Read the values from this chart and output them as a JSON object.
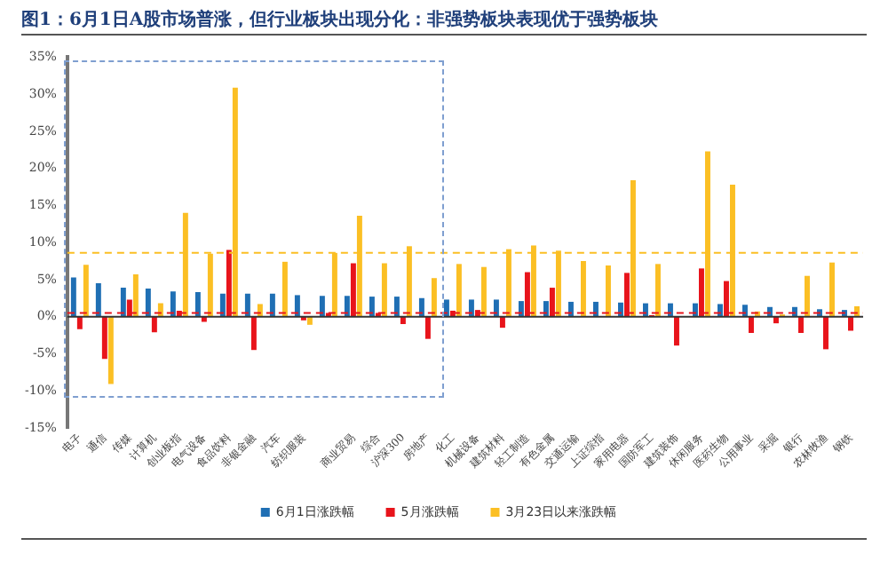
{
  "chart_data": {
    "type": "bar",
    "title": "图1：6月1日A股市场普涨，但行业板块出现分化：非强势板块表现优于强势板块",
    "categories": [
      "电子",
      "通信",
      "传媒",
      "计算机",
      "创业板指",
      "电气设备",
      "食品饮料",
      "非银金融",
      "汽车",
      "纺织服装",
      null,
      "商业贸易",
      "综合",
      "沪深300",
      "房地产",
      "化工",
      "机械设备",
      "建筑材料",
      "轻工制造",
      "有色金属",
      "交通运输",
      "上证综指",
      "家用电器",
      "国防军工",
      "建筑装饰",
      "休闲服务",
      "医药生物",
      "公用事业",
      "采掘",
      "银行",
      "农林牧渔",
      "钢铁"
    ],
    "series": [
      {
        "name": "6月1日涨跌幅",
        "color": "#1f6fb4",
        "values": [
          5.3,
          4.5,
          3.9,
          3.8,
          3.4,
          3.3,
          3.1,
          3.1,
          3.1,
          2.9,
          2.8,
          2.8,
          2.7,
          2.7,
          2.5,
          2.3,
          2.3,
          2.3,
          2.1,
          2.1,
          2.0,
          2.0,
          1.9,
          1.8,
          1.8,
          1.8,
          1.7,
          1.6,
          1.3,
          1.3,
          1.0,
          0.9
        ]
      },
      {
        "name": "5月涨跌幅",
        "color": "#e8141b",
        "values": [
          -1.7,
          -5.7,
          2.3,
          -2.1,
          0.8,
          -0.7,
          9.0,
          -4.5,
          null,
          -0.5,
          0.5,
          7.2,
          0.5,
          -1.0,
          -3.0,
          0.8,
          0.9,
          -1.5,
          6.0,
          3.9,
          0,
          null,
          5.9,
          0.2,
          -3.9,
          6.5,
          4.8,
          -2.2,
          -0.9,
          -2.2,
          -4.4,
          -1.9
        ]
      },
      {
        "name": "3月23日以来涨跌幅",
        "color": "#fbbf24",
        "values": [
          7.0,
          -9.1,
          5.7,
          1.8,
          14.0,
          8.5,
          30.9,
          1.7,
          7.4,
          -1.1,
          8.6,
          13.6,
          7.2,
          9.5,
          5.2,
          7.1,
          6.7,
          9.1,
          9.6,
          8.9,
          7.5,
          6.9,
          18.4,
          7.1,
          0,
          22.3,
          17.8,
          0.7,
          0.3,
          5.5,
          7.3,
          1.4
        ]
      }
    ],
    "ylim": [
      -15,
      35
    ],
    "yticks": [
      {
        "value": -15,
        "label": "-15%"
      },
      {
        "value": -10,
        "label": "-10%"
      },
      {
        "value": -5,
        "label": "-5%"
      },
      {
        "value": 0,
        "label": "0%"
      },
      {
        "value": 5,
        "label": "5%"
      },
      {
        "value": 10,
        "label": "10%"
      },
      {
        "value": 15,
        "label": "15%"
      },
      {
        "value": 20,
        "label": "20%"
      },
      {
        "value": 25,
        "label": "25%"
      },
      {
        "value": 30,
        "label": "30%"
      },
      {
        "value": 35,
        "label": "35%"
      }
    ],
    "ref_lines": [
      {
        "axis": "y",
        "value": 8.6,
        "color": "#fbbf24",
        "line_style": "dashed"
      },
      {
        "axis": "y",
        "value": 0.5,
        "color": "#e8141b",
        "line_style": "dashed"
      }
    ],
    "legend": "bottom"
  }
}
